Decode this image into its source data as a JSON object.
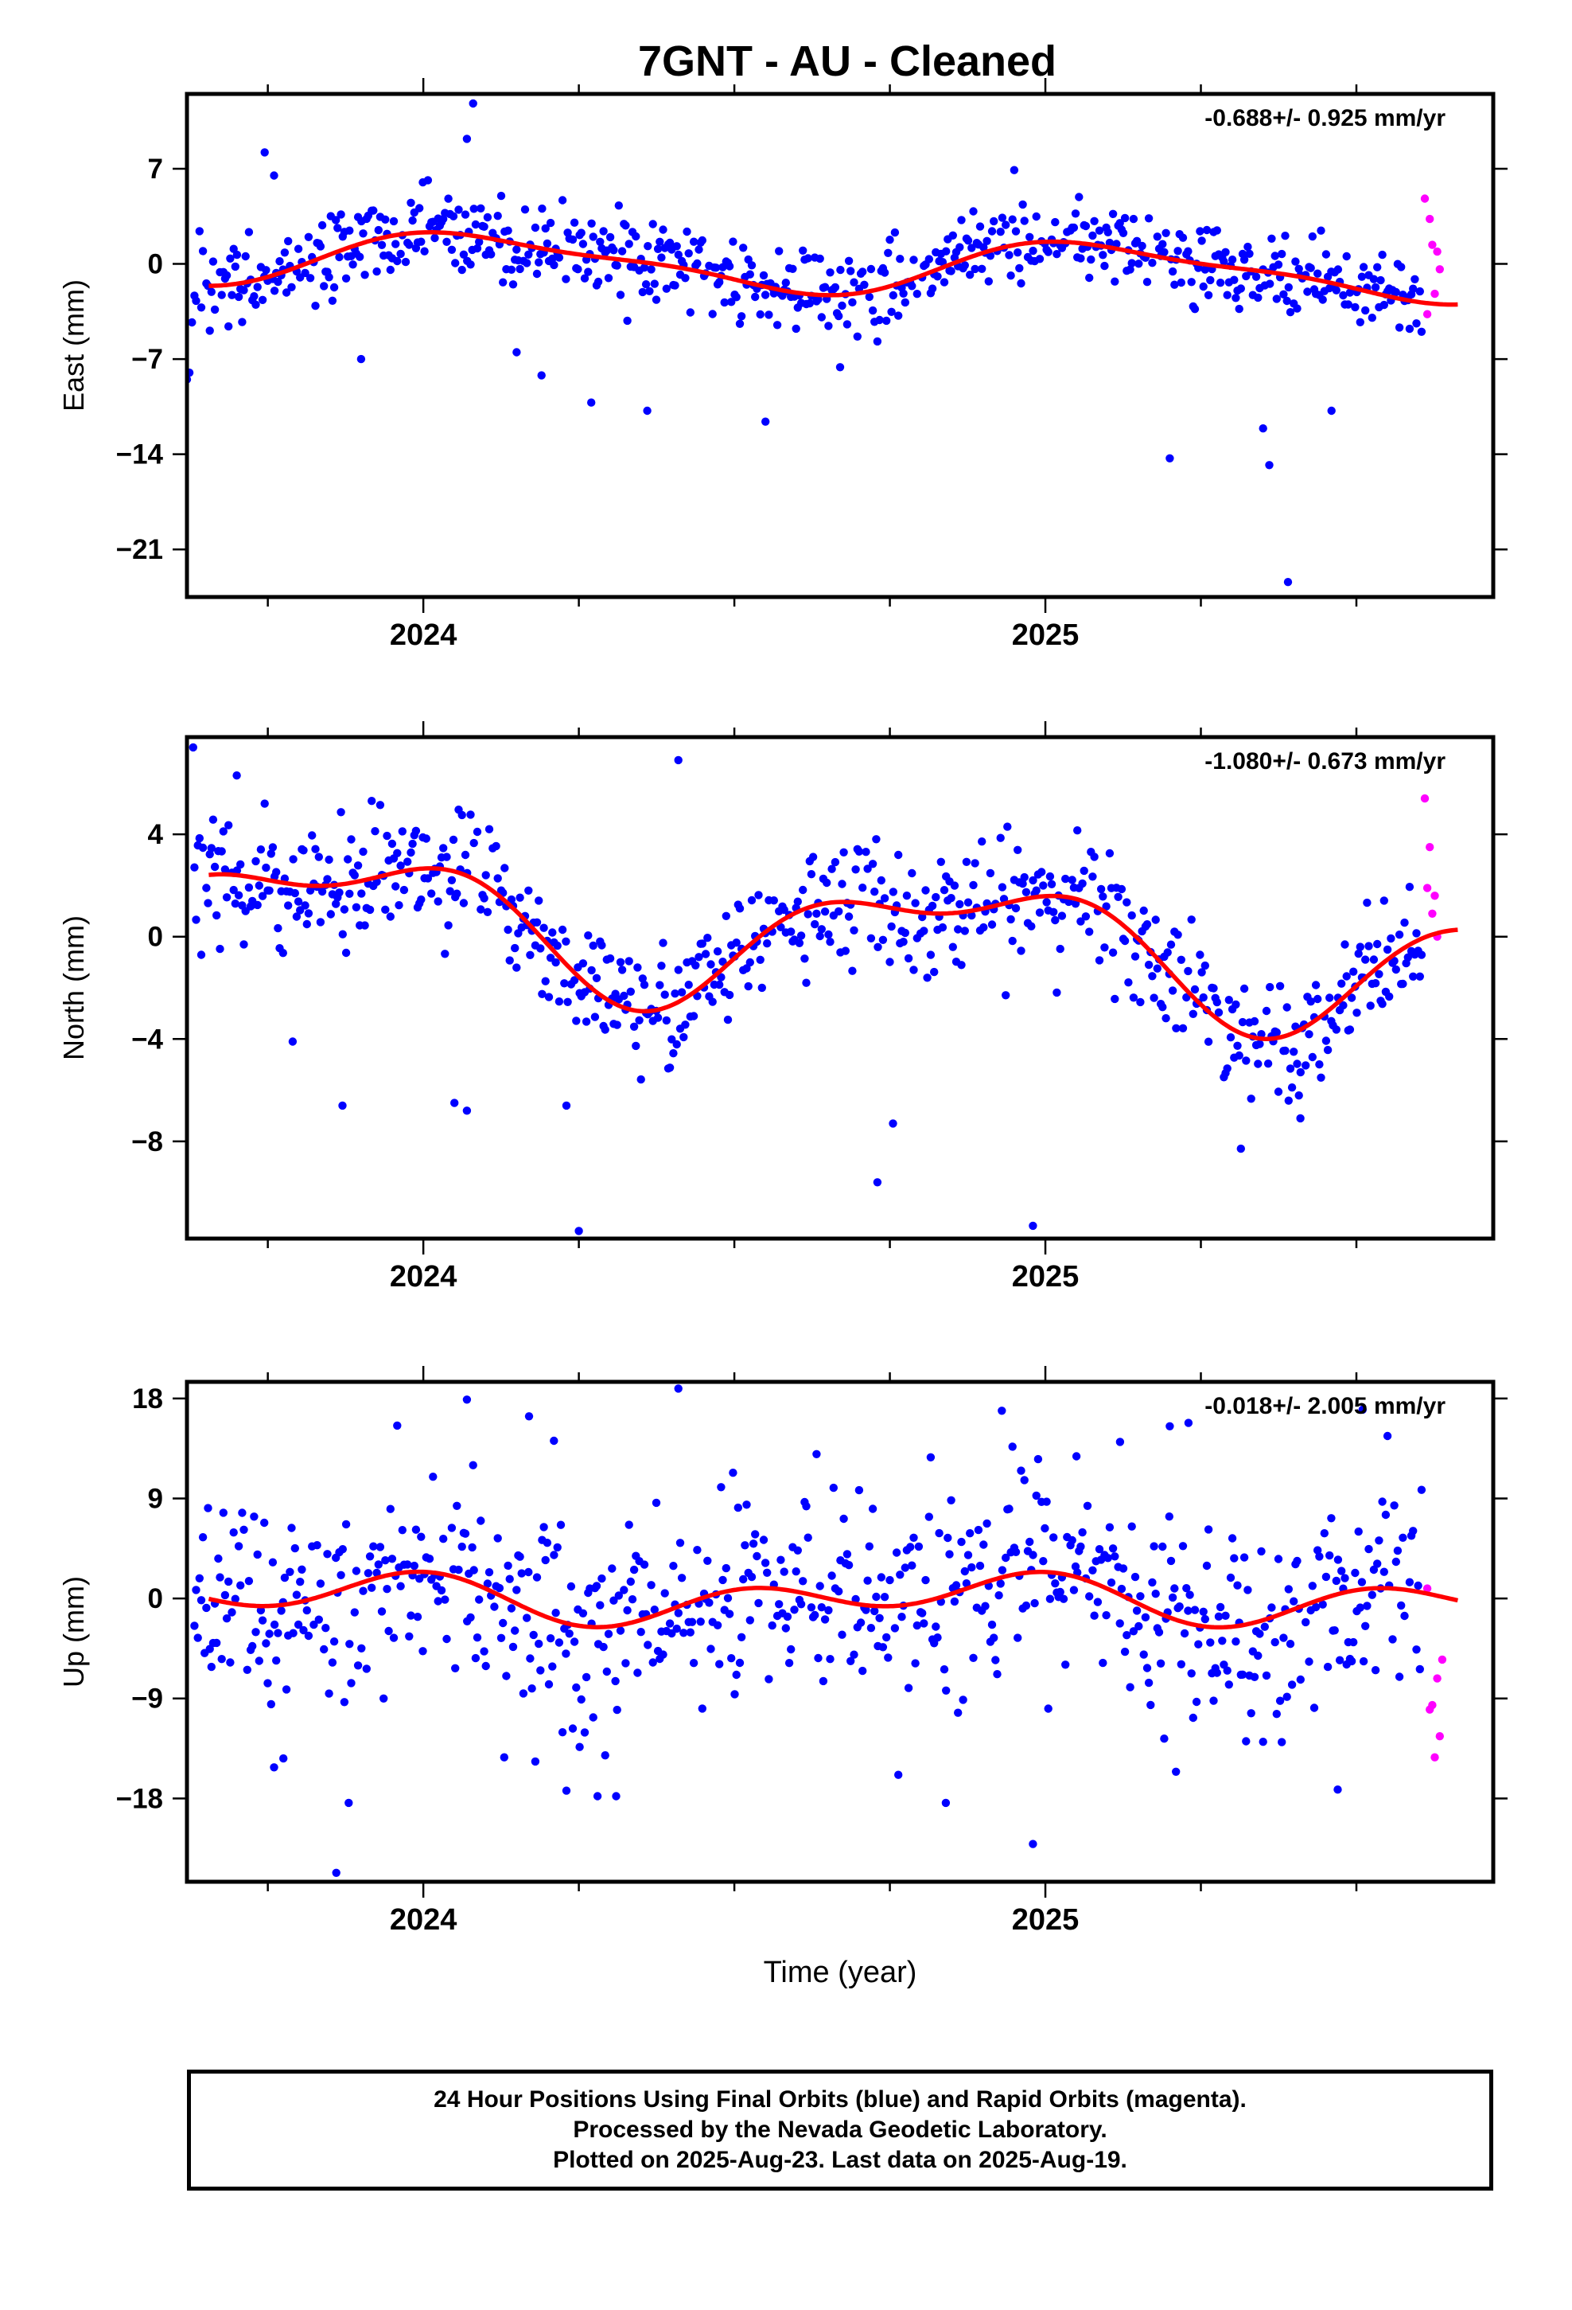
{
  "title": "7GNT  - AU - Cleaned",
  "xlabel": "Time (year)",
  "footer": {
    "line1": "24 Hour Positions Using Final Orbits (blue) and Rapid Orbits (magenta).",
    "line2": "Processed by the Nevada Geodetic Laboratory.",
    "line3": "Plotted on 2025-Aug-23. Last data on 2025-Aug-19."
  },
  "colors": {
    "final_orbits": "#0000ff",
    "rapid_orbits": "#ff00ff",
    "fit": "#ff0000"
  },
  "chart_data": [
    {
      "type": "scatter",
      "ylabel": "East (mm)",
      "rate_label": "-0.688+/- 0.925 mm/yr",
      "xlim": [
        2023.62,
        2025.72
      ],
      "ylim": [
        -24.5,
        12.5
      ],
      "yticks": [
        7,
        0,
        -7,
        -14,
        -21
      ],
      "xticks": [
        2024,
        2025
      ],
      "fit": {
        "mean": -0.1,
        "a1": 1.85,
        "p1": 1.0,
        "a2": 0.55,
        "p2": 2.2,
        "trend": -0.688
      },
      "rapid": {
        "x": [
          2025.61,
          2025.614,
          2025.618,
          2025.622,
          2025.626,
          2025.63,
          2025.634
        ],
        "y": [
          4.8,
          -3.7,
          3.3,
          1.4,
          -2.2,
          0.9,
          -0.4
        ]
      },
      "outliers": {
        "x": [
          2023.62,
          2023.624,
          2023.628,
          2023.745,
          2023.76,
          2023.9,
          2024.07,
          2024.08,
          2024.15,
          2024.19,
          2024.27,
          2024.36,
          2024.55,
          2024.67,
          2024.73,
          2024.95,
          2025.2,
          2025.35,
          2025.36,
          2025.39,
          2025.46
        ],
        "y": [
          -8.5,
          -8.0,
          -4.3,
          8.2,
          6.5,
          -7.0,
          9.2,
          11.8,
          -6.5,
          -8.2,
          -10.2,
          -10.8,
          -11.6,
          -7.6,
          -5.7,
          6.9,
          -14.3,
          -12.1,
          -14.8,
          -23.4,
          -10.8
        ]
      },
      "noise_sigma": 1.5,
      "seed": 11
    },
    {
      "type": "scatter",
      "ylabel": "North (mm)",
      "rate_label": "-1.080+/- 0.673 mm/yr",
      "xlim": [
        2023.62,
        2025.72
      ],
      "ylim": [
        -11.8,
        7.8
      ],
      "yticks": [
        4,
        0,
        -4,
        -8
      ],
      "xticks": [
        2024,
        2025
      ],
      "fit": {
        "mean": 0.1,
        "a1": 2.2,
        "p1": 2.4,
        "a2": 1.1,
        "p2": 0.4,
        "trend": -1.08
      },
      "rapid": {
        "x": [
          2025.61,
          2025.614,
          2025.618,
          2025.622,
          2025.626,
          2025.63
        ],
        "y": [
          5.4,
          1.9,
          3.5,
          0.9,
          1.6,
          0.0
        ]
      },
      "outliers": {
        "x": [
          2023.63,
          2023.7,
          2023.745,
          2023.79,
          2023.87,
          2024.05,
          2024.07,
          2024.23,
          2024.25,
          2024.41,
          2024.73,
          2024.755,
          2024.98,
          2025.41
        ],
        "y": [
          7.4,
          6.3,
          5.2,
          -4.1,
          -6.6,
          -6.5,
          -6.8,
          -6.6,
          -11.5,
          6.9,
          -9.6,
          -7.3,
          -11.3,
          -7.1
        ]
      },
      "noise_sigma": 1.2,
      "seed": 23
    },
    {
      "type": "scatter",
      "ylabel": "Up (mm)",
      "rate_label": "-0.018+/- 2.005 mm/yr",
      "xlim": [
        2023.62,
        2025.72
      ],
      "ylim": [
        -25.5,
        19.5
      ],
      "yticks": [
        18,
        9,
        0,
        -9,
        -18
      ],
      "xticks": [
        2024,
        2025
      ],
      "fit": {
        "mean": 0.0,
        "a1": 1.2,
        "p1": 2.4,
        "a2": 1.6,
        "p2": 1.4,
        "trend": -0.018
      },
      "rapid": {
        "x": [
          2025.614,
          2025.618,
          2025.622,
          2025.626,
          2025.63,
          2025.634,
          2025.638
        ],
        "y": [
          0.9,
          -10.0,
          -9.6,
          -14.3,
          -7.2,
          -12.4,
          -5.5
        ]
      },
      "outliers": {
        "x": [
          2023.76,
          2023.775,
          2023.86,
          2023.88,
          2024.07,
          2024.08,
          2024.13,
          2024.17,
          2024.21,
          2024.23,
          2024.28,
          2024.31,
          2024.41,
          2024.84,
          2024.93,
          2024.98,
          2025.05,
          2025.12,
          2025.2,
          2025.21,
          2025.23,
          2025.47,
          2025.51
        ],
        "y": [
          -15.2,
          -14.4,
          -24.7,
          -18.4,
          17.9,
          12.0,
          -14.3,
          16.4,
          14.2,
          -17.3,
          -17.8,
          -17.8,
          18.9,
          -18.4,
          16.9,
          -22.1,
          12.8,
          14.1,
          15.5,
          -15.6,
          15.8,
          -17.2,
          17.0
        ]
      },
      "noise_sigma": 4.6,
      "seed": 37
    }
  ]
}
